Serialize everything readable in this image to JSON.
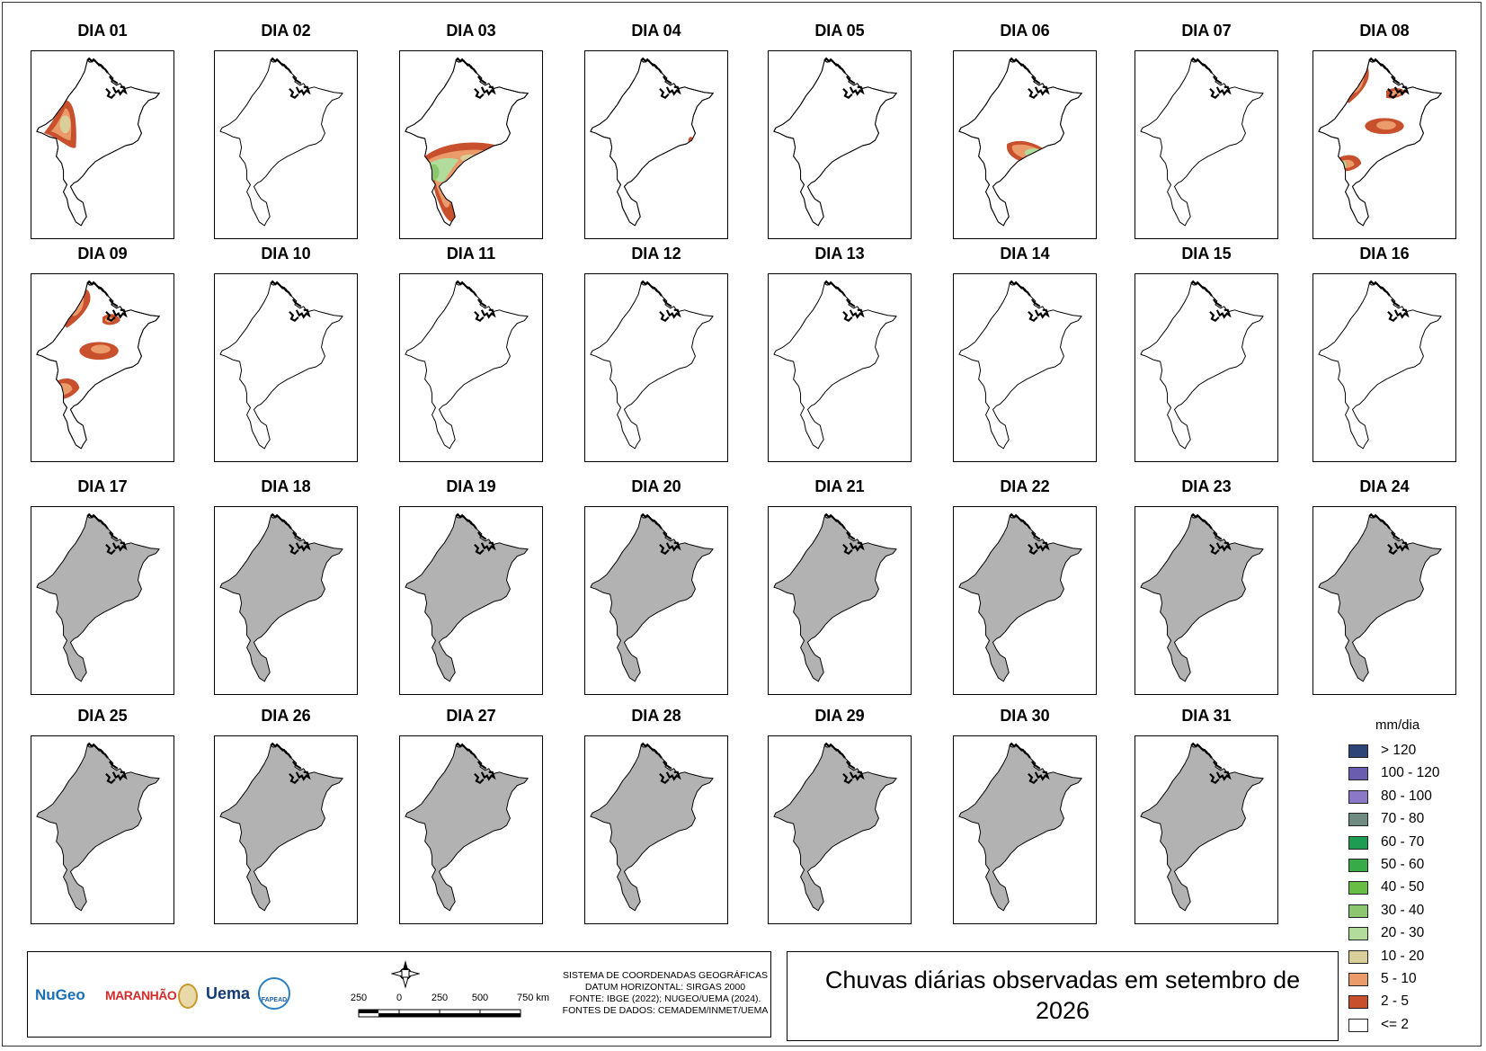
{
  "title_lines": [
    "Chuvas diárias observadas em setembro de",
    "2026"
  ],
  "days": [
    {
      "label": "DIA 01",
      "state": "rain",
      "rain": "d01"
    },
    {
      "label": "DIA 02",
      "state": "rain",
      "rain": ""
    },
    {
      "label": "DIA 03",
      "state": "rain",
      "rain": "d03"
    },
    {
      "label": "DIA 04",
      "state": "rain",
      "rain": "d04"
    },
    {
      "label": "DIA 05",
      "state": "rain",
      "rain": "d05"
    },
    {
      "label": "DIA 06",
      "state": "rain",
      "rain": "d06"
    },
    {
      "label": "DIA 07",
      "state": "rain",
      "rain": ""
    },
    {
      "label": "DIA 08",
      "state": "rain",
      "rain": "d08"
    },
    {
      "label": "DIA 09",
      "state": "rain",
      "rain": "d09"
    },
    {
      "label": "DIA 10",
      "state": "rain",
      "rain": ""
    },
    {
      "label": "DIA 11",
      "state": "rain",
      "rain": ""
    },
    {
      "label": "DIA 12",
      "state": "rain",
      "rain": ""
    },
    {
      "label": "DIA 13",
      "state": "rain",
      "rain": ""
    },
    {
      "label": "DIA 14",
      "state": "rain",
      "rain": ""
    },
    {
      "label": "DIA 15",
      "state": "rain",
      "rain": ""
    },
    {
      "label": "DIA 16",
      "state": "rain",
      "rain": ""
    },
    {
      "label": "DIA 17",
      "state": "nodata",
      "rain": ""
    },
    {
      "label": "DIA 18",
      "state": "nodata",
      "rain": ""
    },
    {
      "label": "DIA 19",
      "state": "nodata",
      "rain": ""
    },
    {
      "label": "DIA 20",
      "state": "nodata",
      "rain": ""
    },
    {
      "label": "DIA 21",
      "state": "nodata",
      "rain": ""
    },
    {
      "label": "DIA 22",
      "state": "nodata",
      "rain": ""
    },
    {
      "label": "DIA 23",
      "state": "nodata",
      "rain": ""
    },
    {
      "label": "DIA 24",
      "state": "nodata",
      "rain": ""
    },
    {
      "label": "DIA 25",
      "state": "nodata",
      "rain": ""
    },
    {
      "label": "DIA 26",
      "state": "nodata",
      "rain": ""
    },
    {
      "label": "DIA 27",
      "state": "nodata",
      "rain": ""
    },
    {
      "label": "DIA 28",
      "state": "nodata",
      "rain": ""
    },
    {
      "label": "DIA 29",
      "state": "nodata",
      "rain": ""
    },
    {
      "label": "DIA 30",
      "state": "nodata",
      "rain": ""
    },
    {
      "label": "DIA 31",
      "state": "nodata",
      "rain": ""
    }
  ],
  "colors": {
    "nodata_fill": "#b2b2b2",
    "outline": "#000000",
    "c2_5": "#c9502c",
    "c5_10": "#eb9a6a",
    "c10_20": "#d8cf9a",
    "c20_30": "#b1dc9c",
    "c30_40": "#8cc66f"
  },
  "legend": {
    "title": "mm/dia",
    "items": [
      {
        "label": "> 120",
        "color": "#2e4577"
      },
      {
        "label": "100 - 120",
        "color": "#6a5db0"
      },
      {
        "label": "80 - 100",
        "color": "#8b79c7"
      },
      {
        "label": "70 - 80",
        "color": "#708b82"
      },
      {
        "label": "60 - 70",
        "color": "#1e9c52"
      },
      {
        "label": "50 - 60",
        "color": "#37ab48"
      },
      {
        "label": "40 - 50",
        "color": "#68bd45"
      },
      {
        "label": "30 - 40",
        "color": "#8cc66f"
      },
      {
        "label": "20 - 30",
        "color": "#b1dc9c"
      },
      {
        "label": "10 - 20",
        "color": "#d8cf9a"
      },
      {
        "label": "5 - 10",
        "color": "#eb9a6a"
      },
      {
        "label": "2 - 5",
        "color": "#c9502c"
      },
      {
        "label": "<= 2",
        "color": "#ffffff"
      }
    ]
  },
  "info": {
    "lines": [
      "SISTEMA DE COORDENADAS GEOGRÁFICAS",
      "DATUM HORIZONTAL: SIRGAS 2000",
      "FONTE: IBGE (2022); NUGEO/UEMA (2024).",
      "FONTES DE DADOS: CEMADEM/INMET/UEMA"
    ],
    "scale_labels": [
      "250",
      "0",
      "250",
      "500",
      "750 km"
    ],
    "logos": {
      "nugeo": "NuGeo",
      "maranhao": "MARANHÃO",
      "uema": "Uema",
      "fapead": "FAPEAD"
    }
  }
}
